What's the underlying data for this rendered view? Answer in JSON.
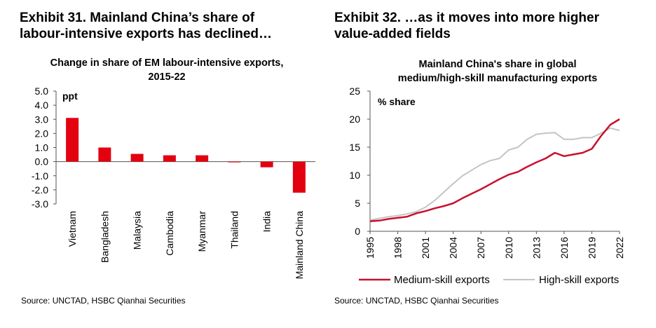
{
  "exhibit31": {
    "title": "Exhibit 31. Mainland China’s share of\nlabour-intensive exports has declined…",
    "source": "Source: UNCTAD, HSBC Qianhai Securities"
  },
  "exhibit32": {
    "title": "Exhibit 32. …as it moves into more higher\nvalue-added fields",
    "source": "Source: UNCTAD, HSBC Qianhai Securities"
  },
  "colors": {
    "bar": "#e3000f",
    "medium": "#c8102e",
    "high": "#c4c4c4",
    "axis": "#555555"
  },
  "chart_data": [
    {
      "type": "bar",
      "title": "Change in share of EM labour-intensive exports,\n2015-22",
      "ylabel": "ppt",
      "ylim": [
        -3.0,
        5.0
      ],
      "yticks": [
        "5.0",
        "4.0",
        "3.0",
        "2.0",
        "1.0",
        "0.0",
        "-1.0",
        "-2.0",
        "-3.0"
      ],
      "categories": [
        "Vietnam",
        "Bangladesh",
        "Malaysia",
        "Cambodia",
        "Myanmar",
        "Thailand",
        "India",
        "Mainland China"
      ],
      "values": [
        3.1,
        1.0,
        0.55,
        0.45,
        0.45,
        0.0,
        -0.4,
        -2.2
      ]
    },
    {
      "type": "line",
      "title": "Mainland China's share in global\nmedium/high-skill manufacturing exports",
      "ylabel": "% share",
      "ylim": [
        0,
        25
      ],
      "yticks": [
        "0",
        "5",
        "10",
        "15",
        "20",
        "25"
      ],
      "xlim": [
        1995,
        2022
      ],
      "xticks": [
        "1995",
        "1998",
        "2001",
        "2004",
        "2007",
        "2010",
        "2013",
        "2016",
        "2019",
        "2022"
      ],
      "x": [
        1995,
        1996,
        1997,
        1998,
        1999,
        2000,
        2001,
        2002,
        2003,
        2004,
        2005,
        2006,
        2007,
        2008,
        2009,
        2010,
        2011,
        2012,
        2013,
        2014,
        2015,
        2016,
        2017,
        2018,
        2019,
        2020,
        2021,
        2022
      ],
      "series": [
        {
          "name": "Medium-skill exports",
          "values": [
            1.8,
            1.9,
            2.2,
            2.4,
            2.6,
            3.2,
            3.6,
            4.1,
            4.5,
            5.0,
            5.9,
            6.7,
            7.5,
            8.4,
            9.3,
            10.1,
            10.6,
            11.5,
            12.3,
            13.0,
            14.0,
            13.4,
            13.7,
            14.0,
            14.7,
            17.0,
            19.0,
            20.0
          ]
        },
        {
          "name": "High-skill exports",
          "values": [
            2.0,
            2.3,
            2.6,
            2.8,
            3.1,
            3.5,
            4.3,
            5.5,
            7.0,
            8.5,
            9.9,
            10.9,
            11.9,
            12.6,
            13.0,
            14.5,
            15.0,
            16.4,
            17.3,
            17.5,
            17.6,
            16.4,
            16.4,
            16.7,
            16.7,
            17.5,
            18.4,
            18.0
          ]
        }
      ]
    }
  ]
}
